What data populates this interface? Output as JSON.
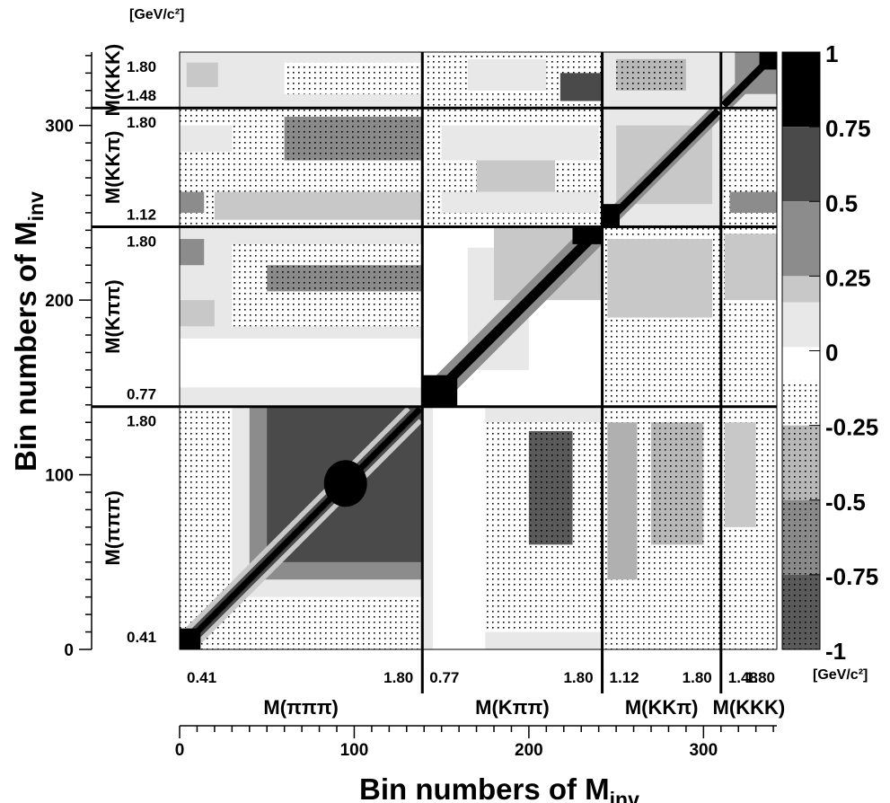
{
  "chart_data": {
    "type": "heatmap",
    "title": "",
    "xlabel": "Bin numbers of M",
    "xlabel_sub": "inv",
    "ylabel": "Bin numbers of M",
    "ylabel_sub": "inv",
    "xlim": [
      0,
      342
    ],
    "ylim": [
      0,
      342
    ],
    "x_ticks": [
      0,
      100,
      200,
      300
    ],
    "y_ticks": [
      0,
      100,
      200,
      300
    ],
    "blocks": [
      {
        "name": "M(πππ)",
        "start": 0,
        "end": 139,
        "low": "0.41",
        "high": "1.80"
      },
      {
        "name": "M(Kππ)",
        "start": 139,
        "end": 242,
        "low": "0.77",
        "high": "1.80"
      },
      {
        "name": "M(KKπ)",
        "start": 242,
        "end": 310,
        "low": "1.12",
        "high": "1.80"
      },
      {
        "name": "M(KKK)",
        "start": 310,
        "end": 342,
        "low": "1.48",
        "high": "1.80"
      }
    ],
    "unit_label": "[GeV/c²]",
    "colorbar": {
      "range": [
        -1,
        1
      ],
      "ticks": [
        "1",
        "0.75",
        "0.5",
        "0.25",
        "0",
        "-0.25",
        "-0.5",
        "-0.75",
        "-1"
      ],
      "levels": [
        -1,
        -0.75,
        -0.5,
        -0.25,
        0,
        0.25,
        0.5,
        0.75,
        1
      ]
    },
    "colors": {
      "pos_4": "#000000",
      "pos_3": "#4a4a4a",
      "pos_2": "#8c8c8c",
      "pos_1": "#c8c8c8",
      "pos_0": "#e8e8e8",
      "zero": "#ffffff",
      "neg_dots": "#000000"
    },
    "grid": false,
    "legend_placement": "right"
  }
}
